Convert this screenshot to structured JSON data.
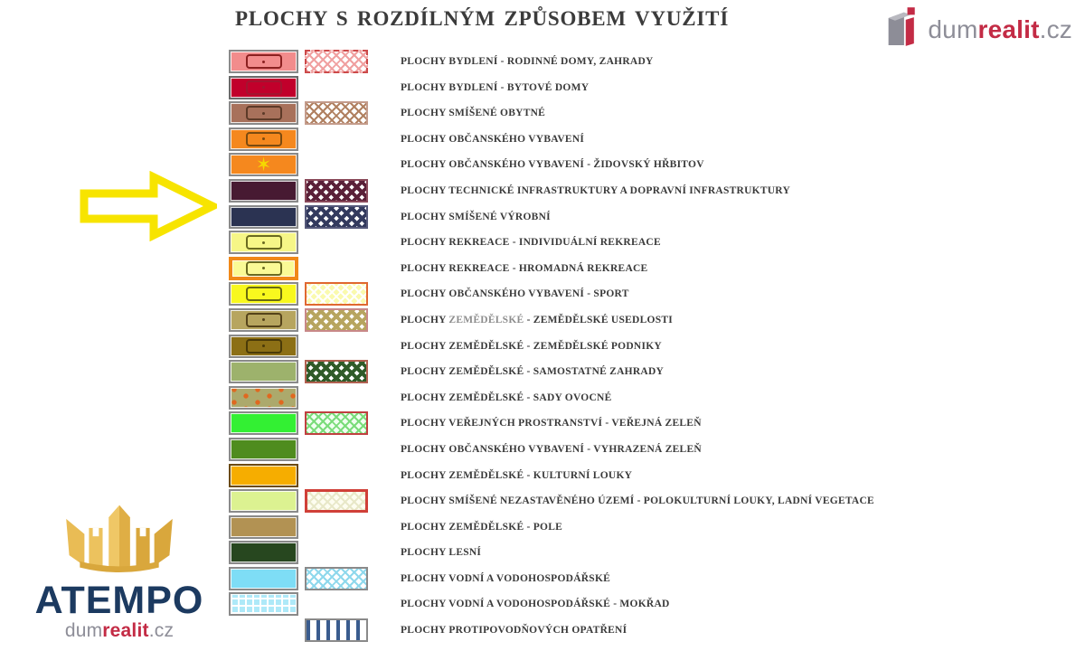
{
  "title": "PLOCHY S ROZDÍLNÝM ZPŮSOBEM VYUŽITÍ",
  "brand_top": {
    "gray1": "dum",
    "accent": "realit",
    "gray2": ".cz"
  },
  "brand_bottom": {
    "agency": "ATEMPO",
    "gray1": "dum",
    "accent": "realit",
    "gray2": ".cz"
  },
  "colors": {
    "accent_red": "#c32b45",
    "brand_gray": "#8e8e98",
    "agency_navy": "#1c3a60",
    "arrow_yellow": "#f7e400",
    "label_text": "#3a3a3a",
    "crown_gold": "#ecc25e"
  },
  "legend": {
    "rows": [
      {
        "label": "PLOCHY BYDLENÍ - RODINNÉ DOMY, ZAHRADY",
        "primary": {
          "fill": "#f28c8c",
          "border": "#8a8a8a",
          "symbol": "rect",
          "symbol_color": "#8b2020"
        },
        "secondary": {
          "pattern": "crosshatch",
          "line": "#f0a0a0",
          "bg": "#ffffff",
          "border": "#cc4a4a",
          "border_style": "dashed"
        }
      },
      {
        "label": "PLOCHY BYDLENÍ - BYTOVÉ DOMY",
        "primary": {
          "fill": "#c1002b",
          "border": "#6a6a6a",
          "symbol": "rect",
          "symbol_color": "#a31430"
        },
        "secondary": null
      },
      {
        "label": "PLOCHY SMÍŠENÉ OBYTNÉ",
        "primary": {
          "fill": "#a8715b",
          "border": "#8a8a8a",
          "symbol": "rect",
          "symbol_color": "#5c3a28"
        },
        "secondary": {
          "pattern": "crosshatch",
          "line": "#b08060",
          "bg": "#ffffff",
          "border": "#c49c8c"
        }
      },
      {
        "label": "PLOCHY OBČANSKÉHO VYBAVENÍ",
        "primary": {
          "fill": "#f5881e",
          "border": "#8a8a8a",
          "symbol": "rect",
          "symbol_color": "#7a4a10"
        },
        "secondary": null
      },
      {
        "label": "PLOCHY OBČANSKÉHO VYBAVENÍ - ŽIDOVSKÝ HŘBITOV",
        "primary": {
          "fill": "#f5881e",
          "border": "#8a8a8a",
          "symbol": "star",
          "symbol_color": "#f5d800"
        },
        "secondary": null
      },
      {
        "label": "PLOCHY TECHNICKÉ INFRASTRUKTURY A DOPRAVNÍ INFRASTRUKTURY",
        "primary": {
          "fill": "#471a32",
          "border": "#8a8a8a"
        },
        "secondary": {
          "pattern": "crosshatch-dense",
          "line": "#5a2038",
          "bg": "#ffffff",
          "border": "#8a4a5a"
        }
      },
      {
        "label": "PLOCHY SMÍŠENÉ VÝROBNÍ",
        "primary": {
          "fill": "#2b3352",
          "border": "#8a8a8a"
        },
        "secondary": {
          "pattern": "crosshatch-dense",
          "line": "#333a5e",
          "bg": "#ffffff",
          "border": "#55597a"
        }
      },
      {
        "label": "PLOCHY REKREACE - INDIVIDUÁLNÍ REKREACE",
        "primary": {
          "fill": "#f6f687",
          "border": "#8a8a8a",
          "symbol": "rect",
          "symbol_color": "#6a6a20"
        },
        "secondary": null
      },
      {
        "label": "PLOCHY REKREACE - HROMADNÁ REKREACE",
        "primary": {
          "fill": "#fafa96",
          "border": "#f08818",
          "border_width": 4,
          "symbol": "rect",
          "symbol_color": "#6a6a20"
        },
        "secondary": null
      },
      {
        "label": "PLOCHY OBČANSKÉHO VYBAVENÍ - SPORT",
        "primary": {
          "fill": "#f8f81e",
          "border": "#8a8a8a",
          "symbol": "rect",
          "symbol_color": "#6a6a10"
        },
        "secondary": {
          "pattern": "crosshatch",
          "line": "#ffffff",
          "bg": "#fafaae",
          "border": "#e06830"
        }
      },
      {
        "label_segments": [
          {
            "text": "PLOCHY ",
            "muted": false
          },
          {
            "text": "ZEMĚDĚLSKÉ",
            "muted": true
          },
          {
            "text": " - ZEMĚDĚLSKÉ USEDLOSTI",
            "muted": false
          }
        ],
        "primary": {
          "fill": "#b7a55f",
          "border": "#8a8a8a",
          "symbol": "rect",
          "symbol_color": "#55431a"
        },
        "secondary": {
          "pattern": "crosshatch-dense",
          "line": "#b7a55f",
          "bg": "#ffffff",
          "border": "#c88888"
        }
      },
      {
        "label": "PLOCHY ZEMĚDĚLSKÉ - ZEMĚDĚLSKÉ PODNIKY",
        "primary": {
          "fill": "#8c6f15",
          "border": "#8a8a8a",
          "symbol": "rect",
          "symbol_color": "#4a3a08"
        },
        "secondary": null
      },
      {
        "label": "PLOCHY ZEMĚDĚLSKÉ - SAMOSTATNÉ ZAHRADY",
        "primary": {
          "fill": "#9db26c",
          "border": "#8a8a8a"
        },
        "secondary": {
          "pattern": "crosshatch-dense",
          "line": "#2f5a28",
          "bg": "#ffffff",
          "border": "#b06050"
        }
      },
      {
        "label": "PLOCHY ZEMĚDĚLSKÉ - SADY OVOCNÉ",
        "primary": {
          "fill": "#aca96c",
          "border": "#8a8a8a",
          "pattern": "orchard",
          "dot": "#e06820"
        },
        "secondary": null
      },
      {
        "label": "PLOCHY VEŘEJNÝCH PROSTRANSTVÍ - VEŘEJNÁ ZELEŇ",
        "primary": {
          "fill": "#33f033",
          "border": "#8a8a8a"
        },
        "secondary": {
          "pattern": "crosshatch",
          "line": "#7adc7a",
          "bg": "#f0fff0",
          "border": "#c04040"
        }
      },
      {
        "label": "PLOCHY OBČANSKÉHO VYBAVENÍ - VYHRAZENÁ ZELEŇ",
        "primary": {
          "fill": "#4f8c1e",
          "border": "#8a8a8a"
        },
        "secondary": null
      },
      {
        "label": "PLOCHY ZEMĚDĚLSKÉ - KULTURNÍ LOUKY",
        "primary": {
          "fill": "#f6ad00",
          "border": "#6b4a12"
        },
        "secondary": null
      },
      {
        "label": "PLOCHY SMÍŠENÉ NEZASTAVĚNÉHO ÚZEMÍ - POLOKULTURNÍ LOUKY, LADNÍ VEGETACE",
        "primary": {
          "fill": "#dcf291",
          "border": "#8a8a8a"
        },
        "secondary": {
          "pattern": "crosshatch",
          "line": "#e8e8c8",
          "bg": "#fdfdf0",
          "border": "#d04038",
          "border_width": 3
        }
      },
      {
        "label": "PLOCHY ZEMĚDĚLSKÉ - POLE",
        "primary": {
          "fill": "#b29253",
          "border": "#8a8a8a"
        },
        "secondary": null
      },
      {
        "label": "PLOCHY LESNÍ",
        "primary": {
          "fill": "#27471f",
          "border": "#8a8a8a"
        },
        "secondary": null
      },
      {
        "label": "PLOCHY VODNÍ A VODOHOSPODÁŘSKÉ",
        "primary": {
          "fill": "#7eddf6",
          "border": "#8a8a8a"
        },
        "secondary": {
          "pattern": "crosshatch",
          "line": "#8ed8ec",
          "bg": "#ffffff",
          "border": "#8a8a8a"
        }
      },
      {
        "label": "PLOCHY VODNÍ A VODOHOSPODÁŘSKÉ - MOKŘAD",
        "primary": {
          "fill": "#aee9f8",
          "border": "#8a8a8a",
          "pattern": "grid",
          "line": "#ffffff"
        },
        "secondary": null
      },
      {
        "label": "PLOCHY PROTIPOVODŇOVÝCH OPATŘENÍ",
        "primary": null,
        "secondary": {
          "pattern": "vstripes",
          "line": "#3a5c8e",
          "bg": "#ffffff",
          "border": "#8a8a8a"
        }
      }
    ]
  }
}
